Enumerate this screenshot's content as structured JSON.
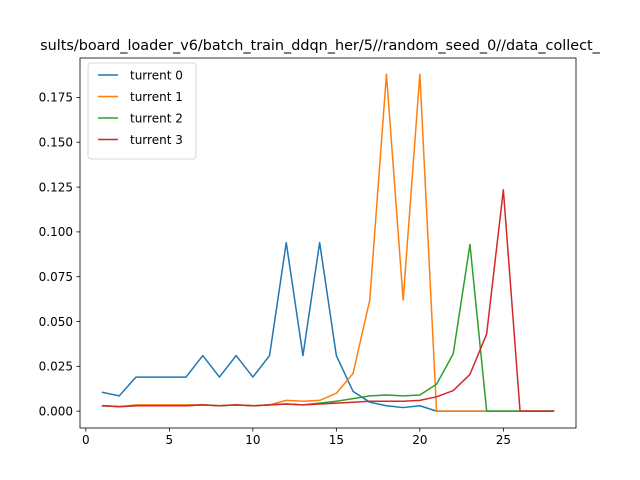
{
  "chart_data": {
    "type": "line",
    "title": "sults/board_loader_v6/batch_train_ddqn_her/5//random_seed_0//data_collect_",
    "xlabel": "",
    "ylabel": "",
    "xlim": [
      -0.35,
      29.35
    ],
    "ylim": [
      -0.0094,
      0.197
    ],
    "xticks": [
      0,
      5,
      10,
      15,
      20,
      25
    ],
    "xtick_labels": [
      "0",
      "5",
      "10",
      "15",
      "20",
      "25"
    ],
    "yticks": [
      0.0,
      0.025,
      0.05,
      0.075,
      0.1,
      0.125,
      0.15,
      0.175
    ],
    "ytick_labels": [
      "0.000",
      "0.025",
      "0.050",
      "0.075",
      "0.100",
      "0.125",
      "0.150",
      "0.175"
    ],
    "grid": false,
    "legend_position": "top-left",
    "x": [
      1,
      2,
      3,
      4,
      5,
      6,
      7,
      8,
      9,
      10,
      11,
      12,
      13,
      14,
      15,
      16,
      17,
      18,
      19,
      20,
      21,
      22,
      23,
      24,
      25,
      26,
      27,
      28
    ],
    "series": [
      {
        "name": "turrent 0",
        "color": "#1f77b4",
        "values": [
          0.0105,
          0.0085,
          0.019,
          0.019,
          0.019,
          0.019,
          0.031,
          0.019,
          0.031,
          0.019,
          0.031,
          0.094,
          0.031,
          0.094,
          0.031,
          0.011,
          0.005,
          0.003,
          0.002,
          0.003,
          0.0,
          0.0,
          0.0,
          0.0,
          0.0,
          0.0,
          0.0,
          0.0
        ]
      },
      {
        "name": "turrent 1",
        "color": "#ff7f0e",
        "values": [
          0.003,
          0.0025,
          0.0035,
          0.0035,
          0.0035,
          0.0035,
          0.0035,
          0.003,
          0.0035,
          0.003,
          0.0035,
          0.006,
          0.0055,
          0.006,
          0.01,
          0.021,
          0.062,
          0.188,
          0.062,
          0.188,
          0.0,
          0.0,
          0.0,
          0.0,
          0.0,
          0.0,
          0.0,
          0.0
        ]
      },
      {
        "name": "turrent 2",
        "color": "#2ca02c",
        "values": [
          0.003,
          0.0025,
          0.003,
          0.003,
          0.003,
          0.003,
          0.0035,
          0.003,
          0.0035,
          0.003,
          0.0035,
          0.004,
          0.0035,
          0.0045,
          0.0055,
          0.007,
          0.0085,
          0.009,
          0.0085,
          0.009,
          0.015,
          0.032,
          0.093,
          0.0,
          0.0,
          0.0,
          0.0,
          0.0
        ]
      },
      {
        "name": "turrent 3",
        "color": "#d62728",
        "values": [
          0.003,
          0.0025,
          0.003,
          0.003,
          0.003,
          0.003,
          0.0035,
          0.003,
          0.0035,
          0.003,
          0.0035,
          0.004,
          0.0035,
          0.004,
          0.0045,
          0.005,
          0.0055,
          0.0055,
          0.0055,
          0.006,
          0.008,
          0.0115,
          0.0205,
          0.043,
          0.1235,
          0.0,
          0.0,
          0.0
        ]
      }
    ]
  }
}
